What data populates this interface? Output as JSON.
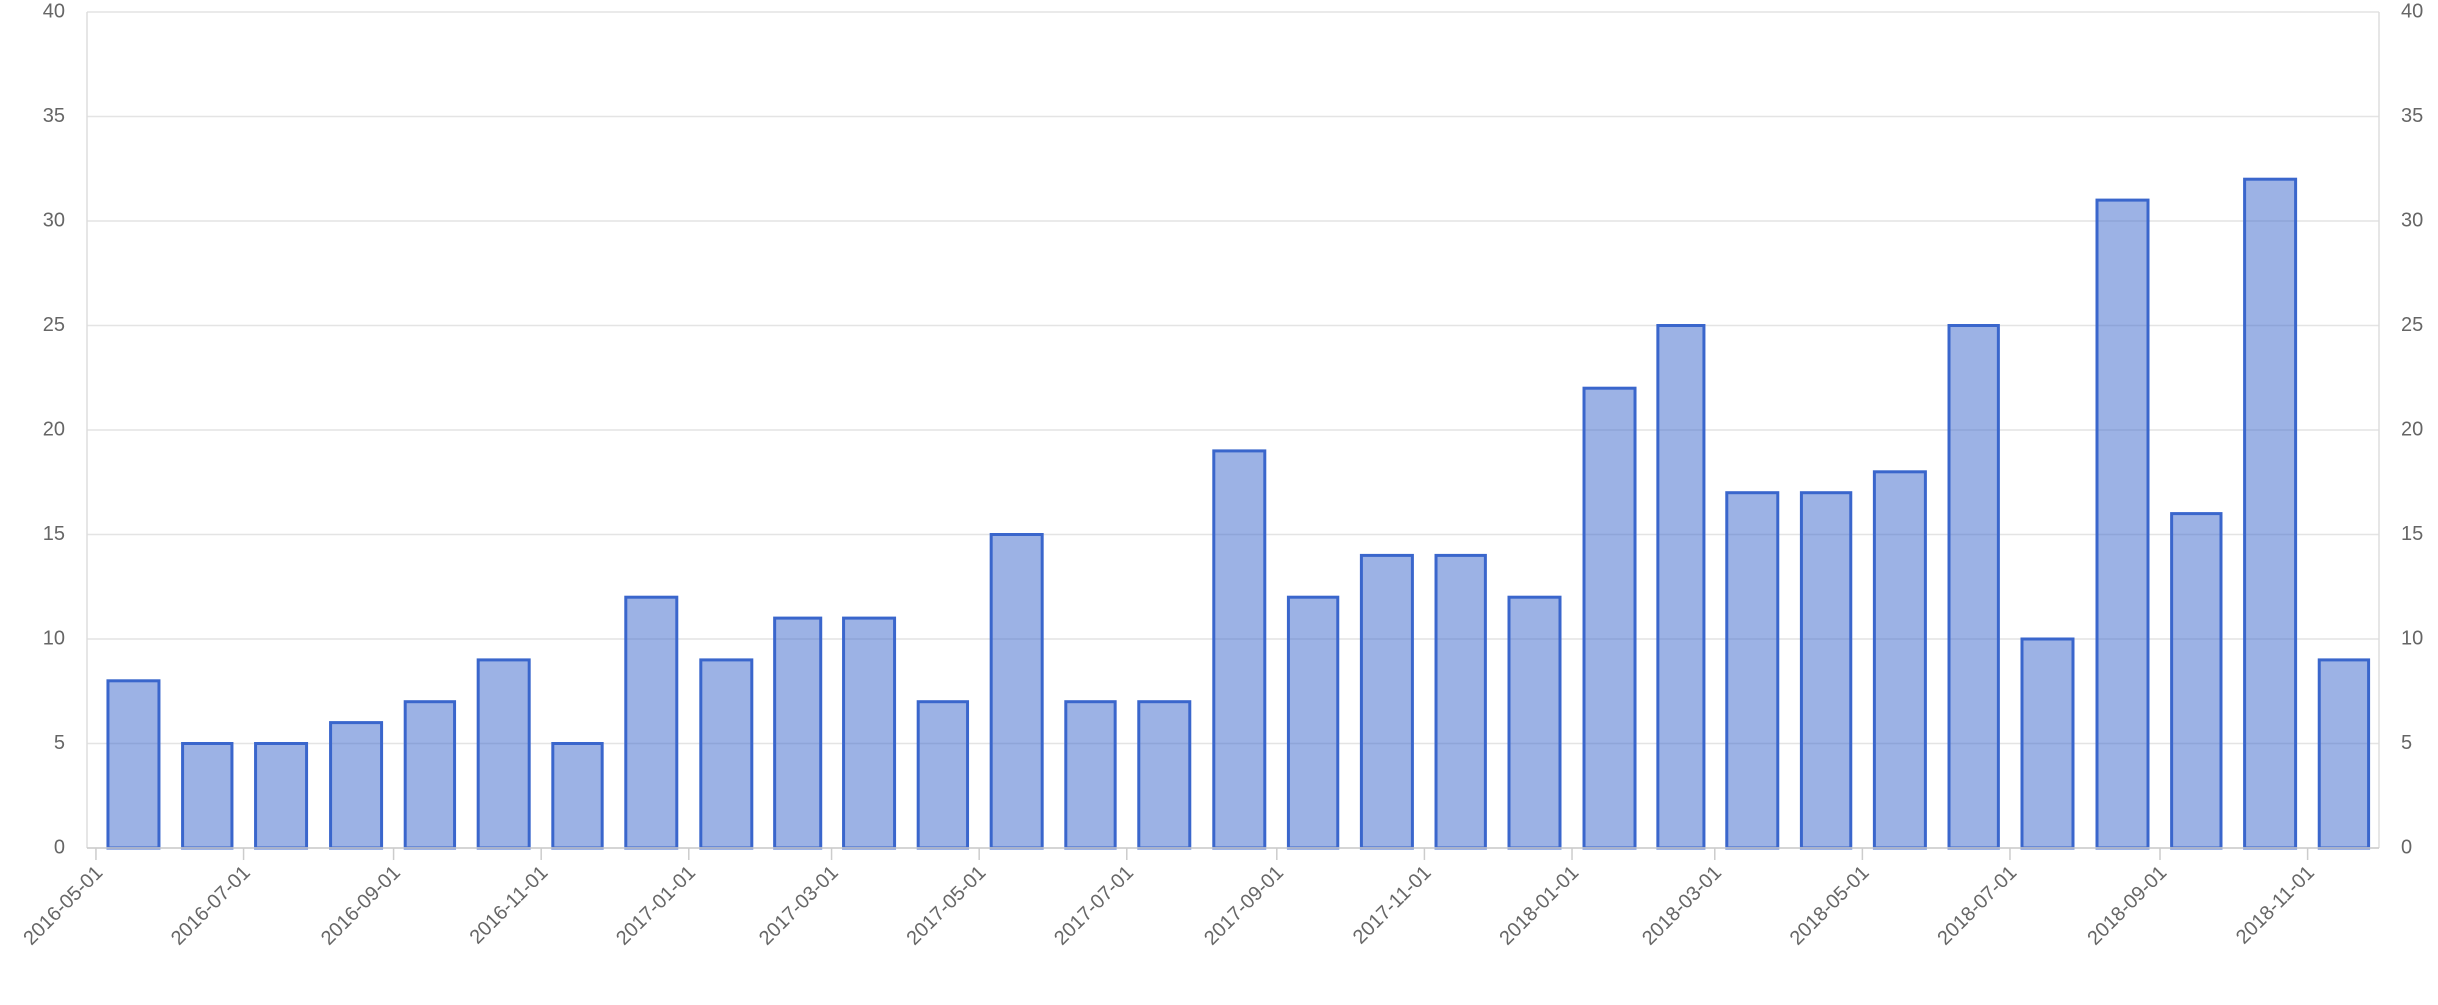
{
  "chart_data": {
    "type": "bar",
    "x": [
      "2016-05-01",
      "2016-06-01",
      "2016-07-01",
      "2016-08-01",
      "2016-09-01",
      "2016-10-01",
      "2016-11-01",
      "2016-12-01",
      "2017-01-01",
      "2017-02-01",
      "2017-03-01",
      "2017-04-01",
      "2017-05-01",
      "2017-06-01",
      "2017-07-01",
      "2017-08-01",
      "2017-09-01",
      "2017-10-01",
      "2017-11-01",
      "2017-12-01",
      "2018-01-01",
      "2018-02-01",
      "2018-03-01",
      "2018-04-01",
      "2018-05-01",
      "2018-06-01",
      "2018-07-01",
      "2018-08-01",
      "2018-09-01",
      "2018-10-01",
      "2018-11-01"
    ],
    "values": [
      8,
      5,
      5,
      6,
      7,
      9,
      5,
      12,
      9,
      11,
      11,
      7,
      15,
      7,
      7,
      19,
      12,
      14,
      14,
      12,
      22,
      25,
      17,
      17,
      18,
      25,
      10,
      31,
      16,
      32,
      9
    ],
    "color": "#3a66cc",
    "fill": "rgba(58,102,204,0.5)",
    "xticks": [
      "2016-05-01",
      "2016-07-01",
      "2016-09-01",
      "2016-11-01",
      "2017-01-01",
      "2017-03-01",
      "2017-05-01",
      "2017-07-01",
      "2017-09-01",
      "2017-11-01",
      "2018-01-01",
      "2018-03-01",
      "2018-05-01",
      "2018-07-01",
      "2018-09-01",
      "2018-11-01"
    ],
    "ylim": [
      0,
      40
    ],
    "yticks": [
      0,
      5,
      10,
      15,
      20,
      25,
      30,
      35,
      40
    ],
    "y2lim": [
      0,
      40
    ],
    "y2ticks": [
      0,
      5,
      10,
      15,
      20,
      25,
      30,
      35,
      40
    ],
    "grid": true
  }
}
